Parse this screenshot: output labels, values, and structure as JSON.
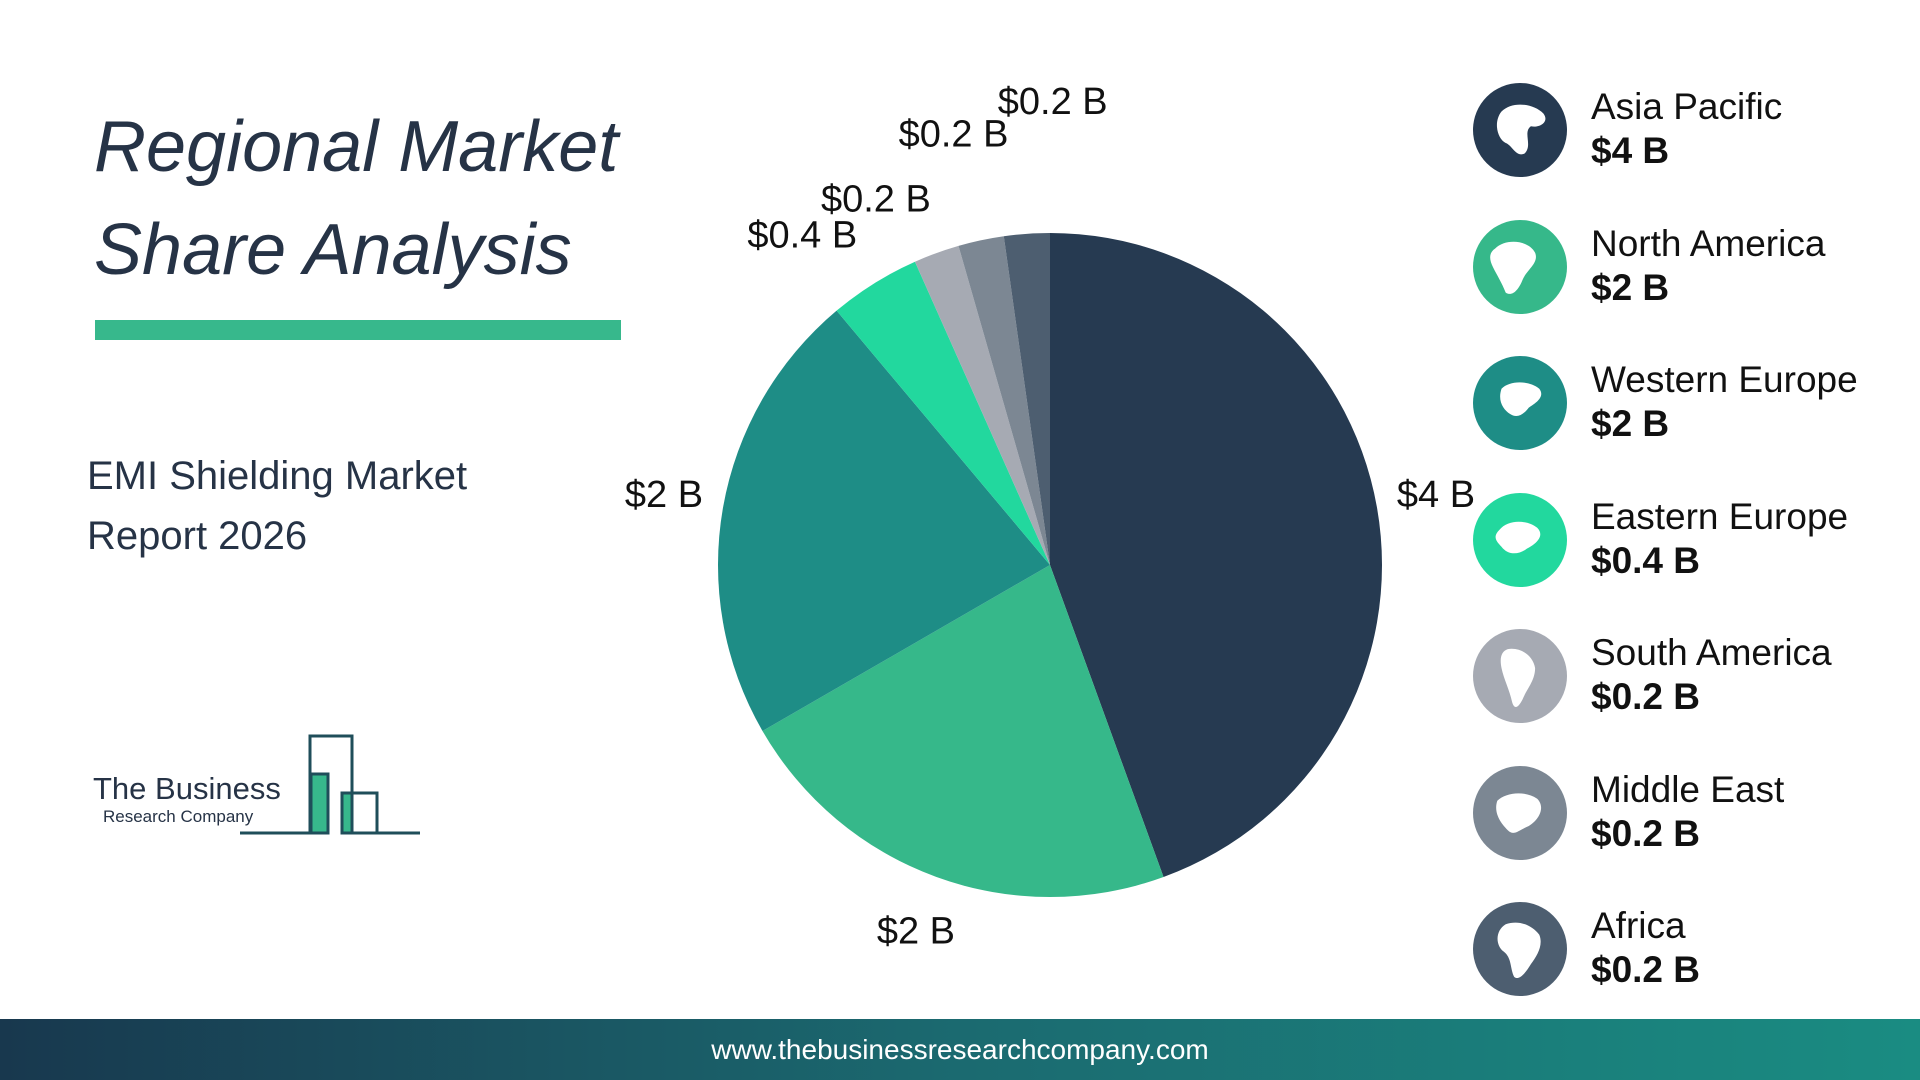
{
  "header": {
    "title": "Regional Market Share Analysis",
    "subtitle": "EMI Shielding Market Report 2026"
  },
  "logo": {
    "line1": "The Business",
    "line2": "Research Company"
  },
  "footer": {
    "url": "www.thebusinessresearchcompany.com"
  },
  "colors": {
    "accent_bar": "#37b88c",
    "text": "#263346"
  },
  "chart_data": {
    "type": "pie",
    "unit": "$ B",
    "slices": [
      {
        "name": "Asia Pacific",
        "value": 4,
        "label": "$4 B",
        "legend_value": "$4 B",
        "color": "#263a51",
        "icon": "asia-pacific-globe-icon"
      },
      {
        "name": "North America",
        "value": 2,
        "label": "$2 B",
        "legend_value": "$2 B",
        "color": "#36b88a",
        "icon": "north-america-globe-icon"
      },
      {
        "name": "Western Europe",
        "value": 2,
        "label": "$2 B",
        "legend_value": "$2 B",
        "color": "#1e8d86",
        "icon": "western-europe-globe-icon"
      },
      {
        "name": "Eastern Europe",
        "value": 0.4,
        "label": "$0.4 B",
        "legend_value": "$0.4 B",
        "color": "#22d89e",
        "icon": "eastern-europe-globe-icon"
      },
      {
        "name": "South America",
        "value": 0.2,
        "label": "$0.2 B",
        "legend_value": "$0.2 B",
        "color": "#a6aab3",
        "icon": "south-america-globe-icon"
      },
      {
        "name": "Middle East",
        "value": 0.2,
        "label": "$0.2 B",
        "legend_value": "$0.2 B",
        "color": "#7c8793",
        "icon": "middle-east-globe-icon"
      },
      {
        "name": "Africa",
        "value": 0.2,
        "label": "$0.2 B",
        "legend_value": " $0.2 B",
        "color": "#4d5e70",
        "icon": "africa-globe-icon"
      }
    ]
  }
}
